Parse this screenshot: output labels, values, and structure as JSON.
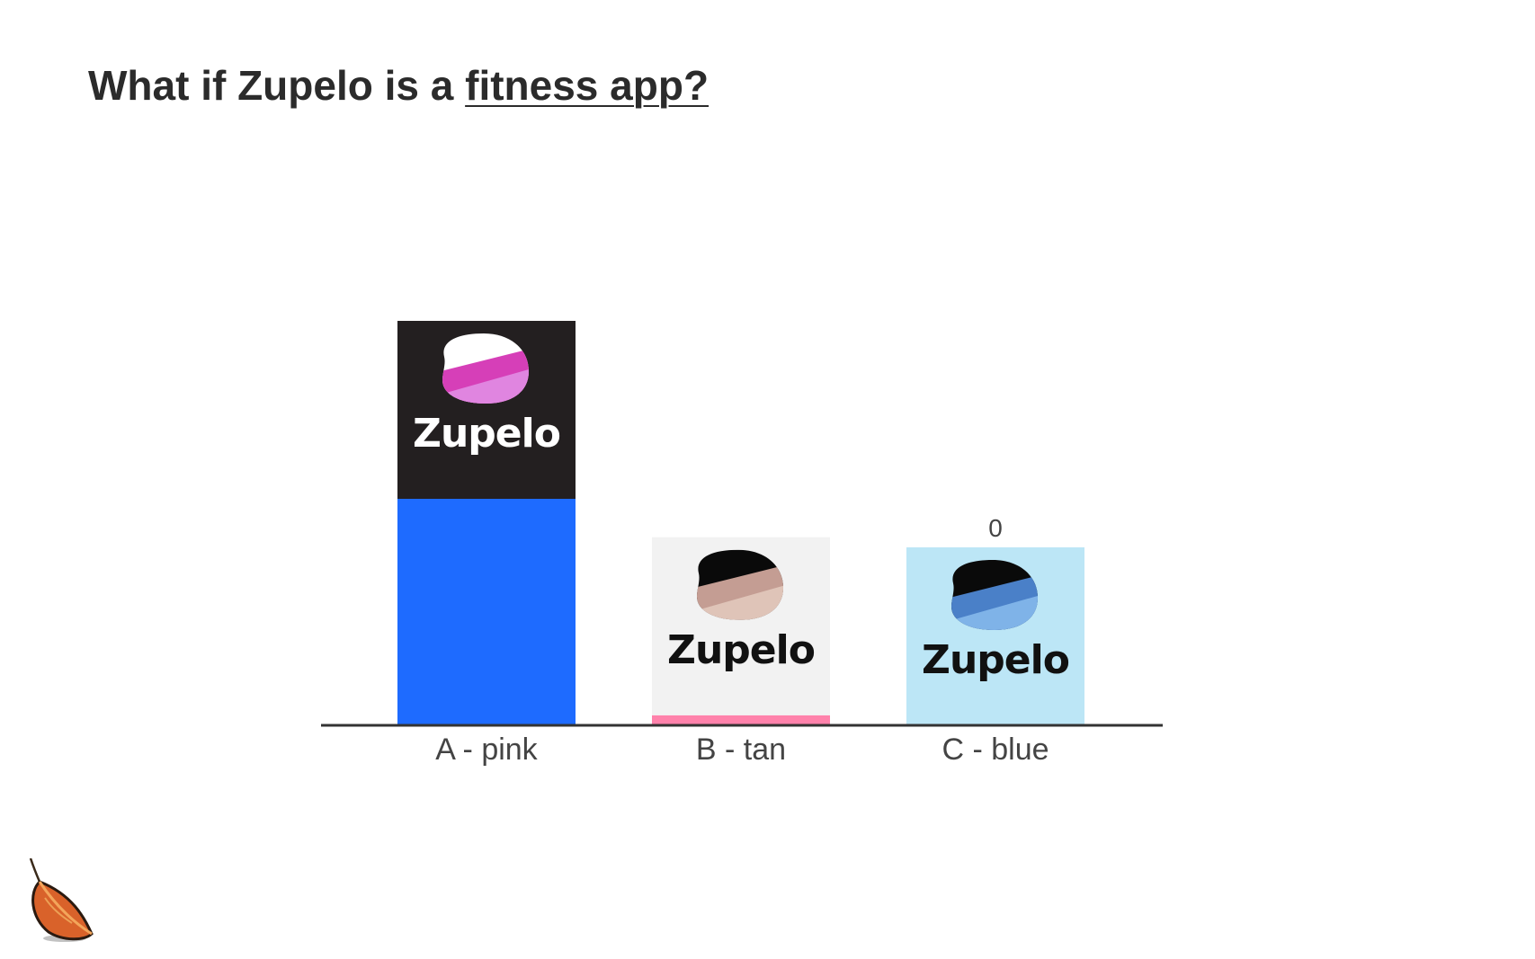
{
  "title": {
    "prefix": "What if Zupelo is a ",
    "emphasis": "fitness app?"
  },
  "logos": [
    {
      "category": "A - pink",
      "text": "Zupelo",
      "background": "#231f20",
      "text_color": "#ffffff",
      "blob_colors": [
        "#ffffff",
        "#d63fb8",
        "#e085e0"
      ]
    },
    {
      "category": "B - tan",
      "text": "Zupelo",
      "background": "#f2f2f2",
      "text_color": "#111111",
      "blob_colors": [
        "#0a0a0a",
        "#c49d93",
        "#dfc4b8"
      ]
    },
    {
      "category": "C - blue",
      "text": "Zupelo",
      "background": "#bce6f6",
      "text_color": "#111111",
      "blob_colors": [
        "#0a0a0a",
        "#4a80c8",
        "#7fb3e8"
      ]
    }
  ],
  "chart_data": {
    "type": "bar",
    "categories": [
      "A - pink",
      "B - tan",
      "C - blue"
    ],
    "values": [
      45,
      2,
      0
    ],
    "value_labels": [
      "",
      "",
      "0"
    ],
    "bar_colors": [
      "#1e6bff",
      "#ff82ab",
      "#1e6bff"
    ],
    "title": "What if Zupelo is a fitness app?",
    "xlabel": "",
    "ylabel": "",
    "ylim": [
      0,
      45
    ],
    "grid": false,
    "legend": "none"
  }
}
